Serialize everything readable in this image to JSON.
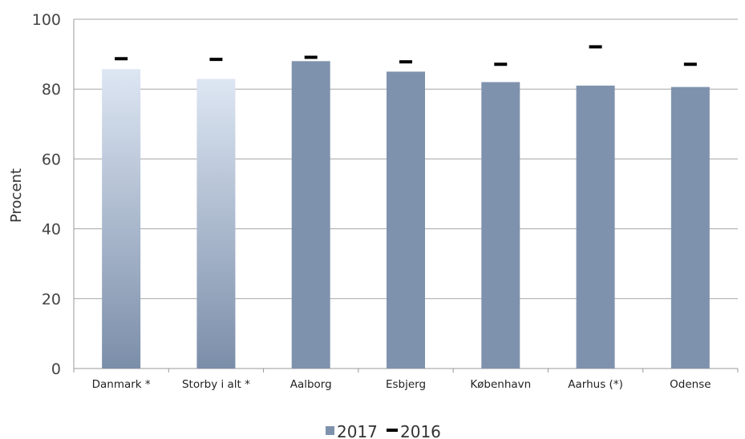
{
  "chart_data": {
    "type": "bar",
    "ylabel": "Procent",
    "xlabel": "",
    "ylim": [
      0,
      100
    ],
    "yticks": [
      0,
      20,
      40,
      60,
      80,
      100
    ],
    "grid": true,
    "legend_position": "bottom-center",
    "categories": [
      "Danmark *",
      "Storby i alt *",
      "Aalborg",
      "Esbjerg",
      "København",
      "Aarhus (*)",
      "Odense"
    ],
    "series": [
      {
        "name": "2017",
        "mark": "bar",
        "values": [
          85.7,
          82.9,
          88.0,
          85.0,
          82.0,
          81.0,
          80.6
        ],
        "color": "#7f92ad",
        "gradient_categories": [
          "Danmark *",
          "Storby i alt *"
        ],
        "gradient_colors": [
          "#dde6f3",
          "#7b8ea9"
        ]
      },
      {
        "name": "2016",
        "mark": "dash",
        "values": [
          88.7,
          88.5,
          89.1,
          87.8,
          87.1,
          92.1,
          87.1
        ],
        "color": "#000000"
      }
    ]
  }
}
